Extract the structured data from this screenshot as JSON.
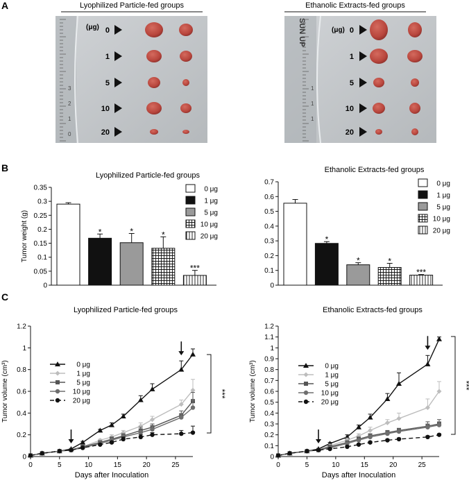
{
  "panel_labels": {
    "a": "A",
    "b": "B",
    "c": "C"
  },
  "photos": [
    {
      "title": "Lyophilized Particle-fed groups",
      "dose_header": "(μg)",
      "rows": [
        "0",
        "1",
        "5",
        "10",
        "20"
      ],
      "ruler_marks": [
        "3",
        "2",
        "1",
        "0"
      ]
    },
    {
      "title": "Ethanolic Extracts-fed groups",
      "dose_header": "(μg)",
      "rows": [
        "0",
        "1",
        "5",
        "10",
        "20"
      ],
      "plate_label": "SUN UP",
      "ruler_marks": [
        "1",
        "1",
        "1"
      ]
    }
  ],
  "colors": {
    "tumor": "#b8463d",
    "tumor_dark": "#8c2f2a",
    "paper": "#c4c8cb",
    "arrow": "#111111"
  },
  "chart_data": [
    {
      "type": "bar",
      "title": "Lyophilized Particle-fed groups",
      "ylabel": "Tumor weight (g)",
      "xlabel": "",
      "ylim": [
        0,
        0.35
      ],
      "yticks": [
        "0",
        "0.05",
        "0.1",
        "0.15",
        "0.2",
        "0.25",
        "0.3",
        "0.35"
      ],
      "categories": [
        "0 μg",
        "1 μg",
        "5 μg",
        "10 μg",
        "20 μg"
      ],
      "values": [
        0.29,
        0.168,
        0.152,
        0.132,
        0.035
      ],
      "errors": [
        0.005,
        0.015,
        0.033,
        0.041,
        0.018
      ],
      "significance": [
        "",
        "*",
        "*",
        "*",
        "***"
      ],
      "legend": [
        "0 μg",
        "1 μg",
        "5 μg",
        "10 μg",
        "20 μg"
      ],
      "fills": [
        "white",
        "black",
        "gray",
        "grid",
        "vlines"
      ]
    },
    {
      "type": "bar",
      "title": "Ethanolic Extracts-fed groups",
      "ylabel": "",
      "xlabel": "",
      "ylim": [
        0,
        0.7
      ],
      "yticks": [
        "0",
        "0.1",
        "0.2",
        "0.3",
        "0.4",
        "0.5",
        "0.6",
        "0.7"
      ],
      "categories": [
        "0 μg",
        "1 μg",
        "5 μg",
        "10 μg",
        "20 μg"
      ],
      "values": [
        0.555,
        0.283,
        0.138,
        0.12,
        0.068
      ],
      "errors": [
        0.025,
        0.012,
        0.014,
        0.028,
        0.004
      ],
      "significance": [
        "",
        "*",
        "*",
        "*",
        "***"
      ],
      "legend": [
        "0 μg",
        "1 μg",
        "5 μg",
        "10 μg",
        "20 μg"
      ],
      "fills": [
        "white",
        "black",
        "gray",
        "grid",
        "vlines"
      ]
    },
    {
      "type": "line",
      "title": "Lyophilized Particle-fed groups",
      "ylabel": "Tumor volume (cm³)",
      "xlabel": "Days after Inoculation",
      "xlim": [
        0,
        28
      ],
      "ylim": [
        0,
        1.2
      ],
      "xticks": [
        "0",
        "5",
        "10",
        "15",
        "20",
        "25"
      ],
      "yticks": [
        "0",
        "0.2",
        "0.4",
        "0.6",
        "0.8",
        "1",
        "1.2"
      ],
      "x": [
        0,
        2,
        5,
        7,
        9,
        12,
        14,
        16,
        19,
        21,
        26,
        28
      ],
      "series": [
        {
          "name": "0 μg",
          "values": [
            0.01,
            0.03,
            0.05,
            0.07,
            0.13,
            0.24,
            0.29,
            0.37,
            0.52,
            0.62,
            0.8,
            0.94
          ],
          "err": [
            0,
            0,
            0,
            0,
            0.01,
            0.01,
            0.02,
            0.02,
            0.04,
            0.05,
            0.08,
            0.05
          ]
        },
        {
          "name": "1 μg",
          "values": [
            0.01,
            0.03,
            0.05,
            0.06,
            0.09,
            0.15,
            0.18,
            0.22,
            0.28,
            0.34,
            0.48,
            0.61
          ],
          "err": [
            0,
            0,
            0,
            0,
            0.01,
            0.01,
            0.02,
            0.02,
            0.03,
            0.03,
            0.04,
            0.1
          ]
        },
        {
          "name": "5 μg",
          "values": [
            0.01,
            0.03,
            0.05,
            0.06,
            0.09,
            0.13,
            0.16,
            0.19,
            0.24,
            0.27,
            0.38,
            0.51
          ],
          "err": [
            0,
            0,
            0,
            0,
            0.01,
            0.01,
            0.02,
            0.02,
            0.03,
            0.03,
            0.04,
            0.08
          ]
        },
        {
          "name": "10 μg",
          "values": [
            0.01,
            0.03,
            0.05,
            0.06,
            0.08,
            0.12,
            0.15,
            0.18,
            0.22,
            0.25,
            0.36,
            0.45
          ],
          "err": [
            0,
            0,
            0,
            0,
            0.01,
            0.01,
            0.02,
            0.02,
            0.02,
            0.03,
            0.03,
            0.07
          ]
        },
        {
          "name": "20 μg",
          "values": [
            0.01,
            0.03,
            0.05,
            0.06,
            0.08,
            0.11,
            0.13,
            0.16,
            0.18,
            0.2,
            0.21,
            0.22
          ],
          "err": [
            0,
            0,
            0,
            0,
            0.01,
            0.01,
            0.01,
            0.02,
            0.02,
            0.02,
            0.03,
            0.06
          ]
        }
      ],
      "arrows_at": [
        7,
        26
      ],
      "significance": "***",
      "legend": [
        "0 μg",
        "1 μg",
        "5 μg",
        "10 μg",
        "20 μg"
      ]
    },
    {
      "type": "line",
      "title": "Ethanolic Extracts-fed groups",
      "ylabel": "Tumor volume (cm³)",
      "xlabel": "Days after Inoculation",
      "xlim": [
        0,
        28
      ],
      "ylim": [
        0,
        1.2
      ],
      "xticks": [
        "0",
        "5",
        "10",
        "15",
        "20",
        "25"
      ],
      "yticks": [
        "0",
        "0.1",
        "0.2",
        "0.3",
        "0.4",
        "0.5",
        "0.6",
        "0.7",
        "0.8",
        "0.9",
        "1",
        "1.1",
        "1.2"
      ],
      "x": [
        0,
        2,
        5,
        7,
        9,
        12,
        14,
        16,
        19,
        21,
        26,
        28
      ],
      "series": [
        {
          "name": "0 μg",
          "values": [
            0.01,
            0.03,
            0.05,
            0.07,
            0.12,
            0.18,
            0.27,
            0.36,
            0.53,
            0.67,
            0.85,
            1.08
          ],
          "err": [
            0,
            0,
            0,
            0,
            0.01,
            0.02,
            0.02,
            0.03,
            0.05,
            0.1,
            0.08,
            0.02
          ]
        },
        {
          "name": "1 μg",
          "values": [
            0.01,
            0.03,
            0.05,
            0.06,
            0.1,
            0.15,
            0.19,
            0.24,
            0.31,
            0.35,
            0.45,
            0.6
          ],
          "err": [
            0,
            0,
            0,
            0,
            0.01,
            0.02,
            0.02,
            0.03,
            0.03,
            0.05,
            0.08,
            0.09
          ]
        },
        {
          "name": "5 μg",
          "values": [
            0.01,
            0.03,
            0.05,
            0.06,
            0.09,
            0.13,
            0.16,
            0.19,
            0.22,
            0.24,
            0.28,
            0.3
          ],
          "err": [
            0,
            0,
            0,
            0,
            0.01,
            0.01,
            0.02,
            0.02,
            0.02,
            0.02,
            0.04,
            0.04
          ]
        },
        {
          "name": "10 μg",
          "values": [
            0.01,
            0.03,
            0.05,
            0.06,
            0.08,
            0.12,
            0.15,
            0.18,
            0.21,
            0.23,
            0.27,
            0.29
          ],
          "err": [
            0,
            0,
            0,
            0,
            0.01,
            0.01,
            0.01,
            0.02,
            0.02,
            0.02,
            0.03,
            0.03
          ]
        },
        {
          "name": "20 μg",
          "values": [
            0.01,
            0.03,
            0.05,
            0.06,
            0.07,
            0.09,
            0.11,
            0.13,
            0.15,
            0.16,
            0.18,
            0.2
          ],
          "err": [
            0,
            0,
            0,
            0,
            0.01,
            0.01,
            0.01,
            0.01,
            0.01,
            0.01,
            0.01,
            0.01
          ]
        }
      ],
      "arrows_at": [
        7,
        26
      ],
      "significance": "***",
      "legend": [
        "0 μg",
        "1 μg",
        "5 μg",
        "10 μg",
        "20 μg"
      ]
    }
  ]
}
